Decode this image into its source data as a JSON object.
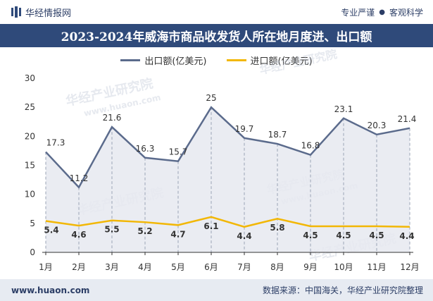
{
  "header": {
    "brand": "华经情报网",
    "slogan_left": "专业严谨",
    "slogan_dot": "●",
    "slogan_right": "客观科学"
  },
  "title": "2023-2024年威海市商品收发货人所在地月度进、出口额",
  "footer": {
    "url": "www.huaon.com",
    "source": "数据来源：中国海关，华经产业研究院整理"
  },
  "watermark": "华经产业研究院",
  "watermark_url": "www.huaon.com",
  "colors": {
    "header_bg": "#2f4a7a",
    "export_line": "#5b6b8c",
    "import_line": "#f2b705",
    "area_fill": "#e6e9f0"
  },
  "chart_data": {
    "type": "line",
    "categories": [
      "1月",
      "2月",
      "3月",
      "4月",
      "5月",
      "6月",
      "7月",
      "8月",
      "9月",
      "10月",
      "11月",
      "12月"
    ],
    "series": [
      {
        "name": "出口额(亿美元)",
        "values": [
          17.3,
          11.2,
          21.6,
          16.3,
          15.7,
          25,
          19.7,
          18.7,
          16.8,
          23.1,
          20.3,
          21.4
        ]
      },
      {
        "name": "进口额(亿美元)",
        "values": [
          5.4,
          4.6,
          5.5,
          5.2,
          4.7,
          6.1,
          4.4,
          5.8,
          4.5,
          4.5,
          4.5,
          4.4
        ]
      }
    ],
    "data_labels": {
      "export": [
        "17.3",
        "11.2",
        "21.6",
        "16.3",
        "15.7",
        "25",
        "19.7",
        "18.7",
        "16.8",
        "23.1",
        "20.3",
        "21.4"
      ],
      "import": [
        "5.4",
        "4.6",
        "5.5",
        "5.2",
        "4.7",
        "6.1",
        "4.4",
        "5.8",
        "4.5",
        "4.5",
        "4.5",
        "4.4"
      ]
    },
    "yticks": [
      "0",
      "5",
      "10",
      "15",
      "20",
      "25",
      "30"
    ],
    "ylim": [
      0,
      30
    ],
    "grid": false,
    "legend_position": "top-center"
  }
}
